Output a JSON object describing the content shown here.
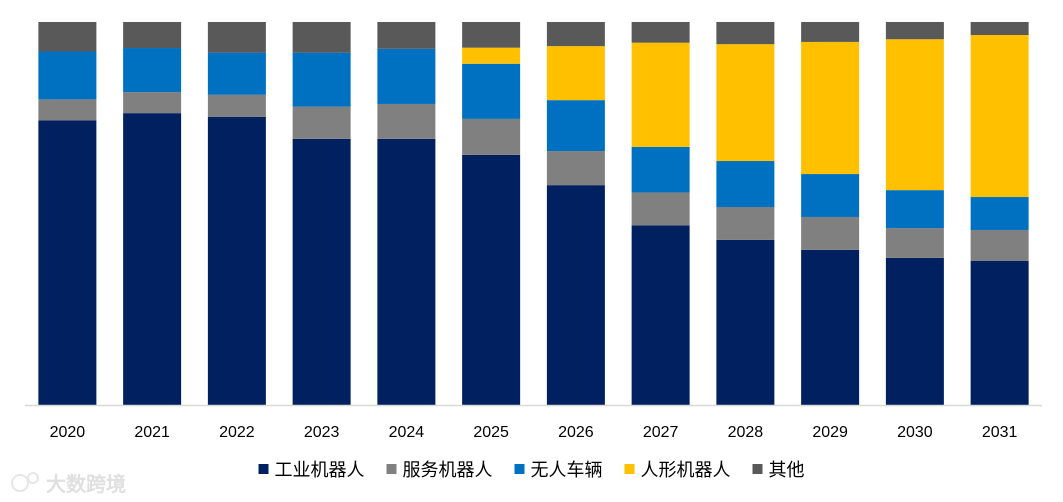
{
  "chart_data": {
    "type": "stacked-bar-100",
    "title": "",
    "xlabel": "",
    "ylabel": "",
    "ylim": [
      0,
      100
    ],
    "categories": [
      "2020",
      "2021",
      "2022",
      "2023",
      "2024",
      "2025",
      "2026",
      "2027",
      "2028",
      "2029",
      "2030",
      "2031"
    ],
    "series": [
      {
        "name": "工业机器人",
        "color": "#002060",
        "values": [
          74.3,
          76.2,
          75.2,
          69.5,
          69.5,
          65.3,
          57.4,
          46.9,
          43.1,
          40.5,
          38.4,
          37.6
        ]
      },
      {
        "name": "服务机器人",
        "color": "#808080",
        "values": [
          5.5,
          5.5,
          5.8,
          8.4,
          9.1,
          9.4,
          8.9,
          8.6,
          8.6,
          8.6,
          7.8,
          8.1
        ]
      },
      {
        "name": "无人车辆",
        "color": "#0070C0",
        "values": [
          12.5,
          11.5,
          11.0,
          14.1,
          14.4,
          14.4,
          13.3,
          11.9,
          12.0,
          11.2,
          9.9,
          8.6
        ]
      },
      {
        "name": "人形机器人",
        "color": "#FFC000",
        "values": [
          0,
          0,
          0,
          0,
          0,
          4.2,
          14.1,
          27.2,
          30.5,
          34.5,
          39.4,
          42.3
        ]
      },
      {
        "name": "其他",
        "color": "#595959",
        "values": [
          7.7,
          6.8,
          8.0,
          8.0,
          7.0,
          6.7,
          6.3,
          5.4,
          5.8,
          5.2,
          4.5,
          3.4
        ]
      }
    ]
  },
  "watermark": "大数跨境",
  "colors": {
    "axis": "#D9D9D9",
    "background": "#FFFFFF"
  }
}
